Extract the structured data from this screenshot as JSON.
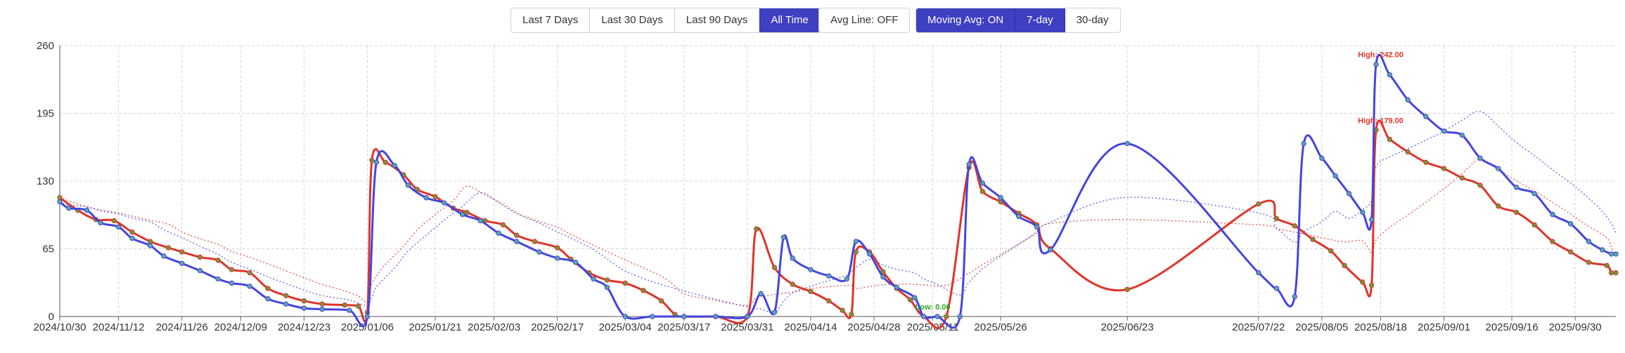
{
  "toolbar": {
    "range_buttons": [
      {
        "label": "Last 7 Days",
        "active": false
      },
      {
        "label": "Last 30 Days",
        "active": false
      },
      {
        "label": "Last 90 Days",
        "active": false
      },
      {
        "label": "All Time",
        "active": true
      }
    ],
    "avg_line_label": "Avg Line: OFF",
    "moving_avg_label": "Moving Avg: ON",
    "moving_window_buttons": [
      {
        "label": "7-day",
        "active": true
      },
      {
        "label": "30-day",
        "active": false
      }
    ]
  },
  "colors": {
    "accent": "#3f3fc2",
    "series_red": "#e0342a",
    "series_blue": "#4444e0",
    "marker_green": "#6a9a3a",
    "marker_teal": "#5aa8a0",
    "grid": "#d4d4d4",
    "low_annotation": "#22aa22"
  },
  "chart_data": {
    "type": "line",
    "x_ticks": [
      "2024/10/30",
      "2024/11/12",
      "2024/11/26",
      "2024/12/09",
      "2024/12/23",
      "2025/01/06",
      "2025/01/21",
      "2025/02/03",
      "2025/02/17",
      "2025/03/04",
      "2025/03/17",
      "2025/03/31",
      "2025/04/14",
      "2025/04/28",
      "2025/05/11",
      "2025/05/26",
      "2025/06/23",
      "2025/07/22",
      "2025/08/05",
      "2025/08/18",
      "2025/09/01",
      "2025/09/16",
      "2025/09/30"
    ],
    "y_ticks": [
      "0",
      "65",
      "130",
      "195",
      "260"
    ],
    "ylim": [
      0,
      260
    ],
    "xlim": [
      "2024/10/30",
      "2025/10/09"
    ],
    "grid": true,
    "moving_average": {
      "window": "7-day",
      "style": "dotted"
    },
    "annotations": [
      {
        "text": "High: 242.00",
        "x": "2025/08/18",
        "y": 242,
        "color": "#e0342a"
      },
      {
        "text": "High: 179.00",
        "x": "2025/08/18",
        "y": 179,
        "color": "#e0342a"
      },
      {
        "text": "Low: 0.00",
        "x": "2025/05/11",
        "y": 0,
        "color": "#22aa22"
      }
    ],
    "series": [
      {
        "color": "#e0342a",
        "marker": "#6a9a3a",
        "points": [
          [
            "2024/10/30",
            114
          ],
          [
            "2024/11/03",
            102
          ],
          [
            "2024/11/07",
            93
          ],
          [
            "2024/11/11",
            92
          ],
          [
            "2024/11/15",
            81
          ],
          [
            "2024/11/19",
            72
          ],
          [
            "2024/11/23",
            66
          ],
          [
            "2024/11/26",
            62
          ],
          [
            "2024/11/30",
            57
          ],
          [
            "2024/12/04",
            54
          ],
          [
            "2024/12/07",
            45
          ],
          [
            "2024/12/11",
            42
          ],
          [
            "2024/12/15",
            27
          ],
          [
            "2024/12/19",
            20
          ],
          [
            "2024/12/23",
            15
          ],
          [
            "2024/12/27",
            12
          ],
          [
            "2025/01/01",
            11
          ],
          [
            "2025/01/04",
            10
          ],
          [
            "2025/01/06",
            4
          ],
          [
            "2025/01/07",
            150
          ],
          [
            "2025/01/10",
            148
          ],
          [
            "2025/01/14",
            136
          ],
          [
            "2025/01/17",
            122
          ],
          [
            "2025/01/21",
            115
          ],
          [
            "2025/01/25",
            104
          ],
          [
            "2025/01/28",
            100
          ],
          [
            "2025/02/01",
            92
          ],
          [
            "2025/02/05",
            88
          ],
          [
            "2025/02/08",
            78
          ],
          [
            "2025/02/12",
            72
          ],
          [
            "2025/02/17",
            66
          ],
          [
            "2025/02/20",
            55
          ],
          [
            "2025/02/24",
            42
          ],
          [
            "2025/02/28",
            35
          ],
          [
            "2025/03/04",
            32
          ],
          [
            "2025/03/08",
            25
          ],
          [
            "2025/03/12",
            15
          ],
          [
            "2025/03/15",
            2
          ],
          [
            "2025/03/17",
            0
          ],
          [
            "2025/03/24",
            0
          ],
          [
            "2025/03/31",
            0
          ],
          [
            "2025/04/02",
            84
          ],
          [
            "2025/04/06",
            47
          ],
          [
            "2025/04/10",
            31
          ],
          [
            "2025/04/14",
            24
          ],
          [
            "2025/04/18",
            15
          ],
          [
            "2025/04/21",
            6
          ],
          [
            "2025/04/23",
            2
          ],
          [
            "2025/04/24",
            62
          ],
          [
            "2025/04/27",
            62
          ],
          [
            "2025/04/30",
            43
          ],
          [
            "2025/05/03",
            27
          ],
          [
            "2025/05/06",
            16
          ],
          [
            "2025/05/09",
            0
          ],
          [
            "2025/05/14",
            0
          ],
          [
            "2025/05/19",
            143
          ],
          [
            "2025/05/22",
            120
          ],
          [
            "2025/05/26",
            110
          ],
          [
            "2025/05/30",
            99
          ],
          [
            "2025/06/03",
            88
          ],
          [
            "2025/06/06",
            65
          ],
          [
            "2025/06/23",
            26
          ],
          [
            "2025/07/22",
            108
          ],
          [
            "2025/07/26",
            94
          ],
          [
            "2025/07/30",
            87
          ],
          [
            "2025/08/03",
            74
          ],
          [
            "2025/08/07",
            63
          ],
          [
            "2025/08/10",
            49
          ],
          [
            "2025/08/14",
            33
          ],
          [
            "2025/08/16",
            30
          ],
          [
            "2025/08/17",
            179
          ],
          [
            "2025/08/20",
            170
          ],
          [
            "2025/08/24",
            158
          ],
          [
            "2025/08/28",
            148
          ],
          [
            "2025/09/01",
            142
          ],
          [
            "2025/09/05",
            133
          ],
          [
            "2025/09/09",
            126
          ],
          [
            "2025/09/13",
            106
          ],
          [
            "2025/09/17",
            100
          ],
          [
            "2025/09/21",
            88
          ],
          [
            "2025/09/25",
            72
          ],
          [
            "2025/09/29",
            62
          ],
          [
            "2025/10/03",
            52
          ],
          [
            "2025/10/07",
            49
          ],
          [
            "2025/10/08",
            42
          ],
          [
            "2025/10/09",
            42
          ]
        ]
      },
      {
        "color": "#4444e0",
        "marker": "#5aa8a0",
        "points": [
          [
            "2024/10/30",
            110
          ],
          [
            "2024/11/01",
            104
          ],
          [
            "2024/11/05",
            102
          ],
          [
            "2024/11/08",
            90
          ],
          [
            "2024/11/12",
            86
          ],
          [
            "2024/11/15",
            75
          ],
          [
            "2024/11/19",
            68
          ],
          [
            "2024/11/22",
            58
          ],
          [
            "2024/11/26",
            51
          ],
          [
            "2024/11/30",
            44
          ],
          [
            "2024/12/04",
            36
          ],
          [
            "2024/12/07",
            32
          ],
          [
            "2024/12/11",
            29
          ],
          [
            "2024/12/15",
            17
          ],
          [
            "2024/12/19",
            12
          ],
          [
            "2024/12/23",
            8
          ],
          [
            "2024/12/27",
            7
          ],
          [
            "2025/01/02",
            6
          ],
          [
            "2025/01/06",
            0
          ],
          [
            "2025/01/08",
            148
          ],
          [
            "2025/01/12",
            145
          ],
          [
            "2025/01/15",
            126
          ],
          [
            "2025/01/19",
            114
          ],
          [
            "2025/01/23",
            109
          ],
          [
            "2025/01/27",
            98
          ],
          [
            "2025/01/31",
            92
          ],
          [
            "2025/02/04",
            80
          ],
          [
            "2025/02/08",
            72
          ],
          [
            "2025/02/13",
            62
          ],
          [
            "2025/02/17",
            56
          ],
          [
            "2025/02/21",
            52
          ],
          [
            "2025/02/25",
            36
          ],
          [
            "2025/02/28",
            28
          ],
          [
            "2025/03/04",
            0
          ],
          [
            "2025/03/10",
            0
          ],
          [
            "2025/03/17",
            0
          ],
          [
            "2025/03/24",
            0
          ],
          [
            "2025/03/31",
            0
          ],
          [
            "2025/04/03",
            22
          ],
          [
            "2025/04/06",
            4
          ],
          [
            "2025/04/08",
            76
          ],
          [
            "2025/04/10",
            56
          ],
          [
            "2025/04/14",
            45
          ],
          [
            "2025/04/18",
            39
          ],
          [
            "2025/04/22",
            36
          ],
          [
            "2025/04/24",
            72
          ],
          [
            "2025/04/27",
            60
          ],
          [
            "2025/04/30",
            38
          ],
          [
            "2025/05/03",
            28
          ],
          [
            "2025/05/07",
            18
          ],
          [
            "2025/05/09",
            0
          ],
          [
            "2025/05/12",
            0
          ],
          [
            "2025/05/17",
            0
          ],
          [
            "2025/05/19",
            146
          ],
          [
            "2025/05/22",
            128
          ],
          [
            "2025/05/26",
            114
          ],
          [
            "2025/05/30",
            96
          ],
          [
            "2025/06/03",
            86
          ],
          [
            "2025/06/06",
            64
          ],
          [
            "2025/06/23",
            166
          ],
          [
            "2025/07/22",
            42
          ],
          [
            "2025/07/26",
            27
          ],
          [
            "2025/07/30",
            19
          ],
          [
            "2025/08/01",
            166
          ],
          [
            "2025/08/05",
            152
          ],
          [
            "2025/08/08",
            135
          ],
          [
            "2025/08/11",
            118
          ],
          [
            "2025/08/14",
            100
          ],
          [
            "2025/08/16",
            93
          ],
          [
            "2025/08/17",
            242
          ],
          [
            "2025/08/20",
            232
          ],
          [
            "2025/08/24",
            208
          ],
          [
            "2025/08/28",
            192
          ],
          [
            "2025/09/01",
            178
          ],
          [
            "2025/09/05",
            174
          ],
          [
            "2025/09/09",
            152
          ],
          [
            "2025/09/13",
            142
          ],
          [
            "2025/09/17",
            124
          ],
          [
            "2025/09/21",
            118
          ],
          [
            "2025/09/25",
            98
          ],
          [
            "2025/09/29",
            89
          ],
          [
            "2025/10/03",
            72
          ],
          [
            "2025/10/06",
            64
          ],
          [
            "2025/10/08",
            60
          ],
          [
            "2025/10/09",
            60
          ]
        ]
      }
    ]
  }
}
